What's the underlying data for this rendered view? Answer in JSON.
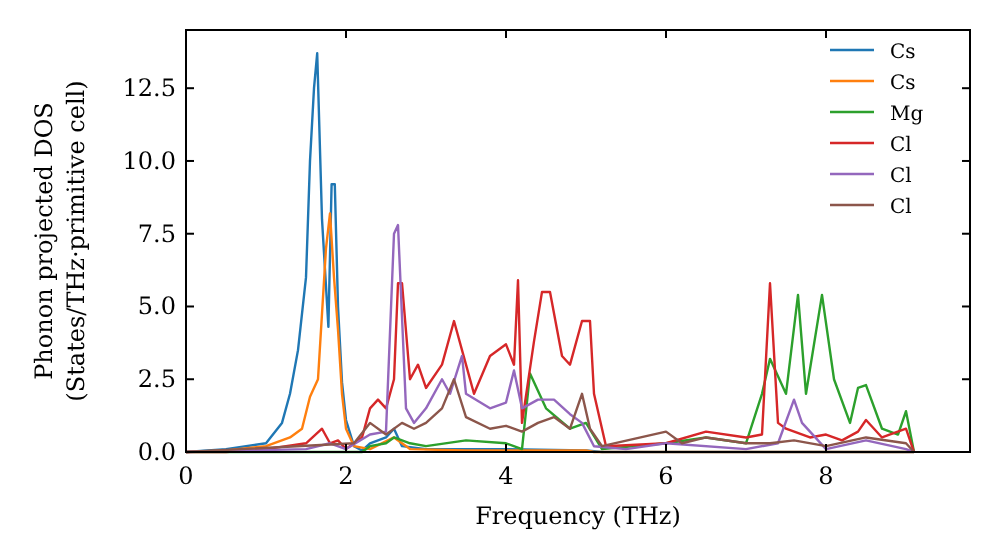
{
  "chart_data": {
    "type": "line",
    "xlabel": "Frequency (THz)",
    "ylabel": "Phonon projected DOS\n(States/THz·primitive cell)",
    "xlim": [
      0,
      9.8
    ],
    "ylim": [
      0,
      14.5
    ],
    "xticks": [
      0,
      2,
      4,
      6,
      8
    ],
    "yticks": [
      {
        "value": 0,
        "label": "0.0"
      },
      {
        "value": 2.5,
        "label": "2.5"
      },
      {
        "value": 5,
        "label": "5.0"
      },
      {
        "value": 7.5,
        "label": "7.5"
      },
      {
        "value": 10,
        "label": "10.0"
      },
      {
        "value": 12.5,
        "label": "12.5"
      }
    ],
    "grid": false,
    "legend": "top right",
    "series": [
      {
        "name": "Cs",
        "color": "#1f77b4",
        "x": [
          0,
          0.5,
          1.0,
          1.2,
          1.3,
          1.4,
          1.5,
          1.55,
          1.6,
          1.64,
          1.7,
          1.78,
          1.82,
          1.86,
          1.9,
          1.95,
          2.0,
          2.1,
          2.2,
          2.3,
          2.5,
          2.6,
          2.7,
          3.0,
          4.0,
          5.0,
          5.2,
          9.1
        ],
        "values": [
          0,
          0.1,
          0.3,
          1.0,
          2.0,
          3.5,
          6,
          10,
          12.5,
          13.7,
          8,
          4.3,
          9.2,
          9.2,
          5,
          2.4,
          1.1,
          0.2,
          0.05,
          0.3,
          0.5,
          0.8,
          0.2,
          0.1,
          0.1,
          0.05,
          0,
          0
        ]
      },
      {
        "name": "Cs",
        "color": "#ff7f0e",
        "x": [
          0,
          0.5,
          1.0,
          1.3,
          1.45,
          1.55,
          1.65,
          1.75,
          1.8,
          1.85,
          1.9,
          1.95,
          2.0,
          2.1,
          2.3,
          2.6,
          2.8,
          3.5,
          5.0,
          5.1,
          9.1
        ],
        "values": [
          0,
          0.05,
          0.2,
          0.5,
          0.8,
          1.9,
          2.5,
          7,
          8.2,
          6,
          4.2,
          2.0,
          0.8,
          0.2,
          0.1,
          0.5,
          0.1,
          0.05,
          0.05,
          0,
          0
        ]
      },
      {
        "name": "Mg",
        "color": "#2ca02c",
        "x": [
          0,
          2.2,
          2.3,
          2.5,
          2.6,
          2.8,
          3.0,
          3.5,
          4.0,
          4.2,
          4.3,
          4.5,
          4.8,
          5.0,
          5.2,
          6.0,
          6.5,
          7.0,
          7.2,
          7.3,
          7.5,
          7.65,
          7.75,
          7.95,
          8.1,
          8.3,
          8.4,
          8.5,
          8.7,
          8.9,
          9.0,
          9.1
        ],
        "values": [
          0,
          0,
          0.2,
          0.3,
          0.5,
          0.3,
          0.2,
          0.4,
          0.3,
          0.1,
          2.7,
          1.5,
          0.8,
          1.0,
          0.1,
          0.3,
          0.5,
          0.3,
          2.0,
          3.2,
          2.0,
          5.4,
          2.0,
          5.4,
          2.5,
          1.0,
          2.2,
          2.3,
          0.8,
          0.6,
          1.4,
          0
        ]
      },
      {
        "name": "Cl",
        "color": "#d62728",
        "x": [
          0,
          0.5,
          1.0,
          1.5,
          1.7,
          1.8,
          1.9,
          2.0,
          2.2,
          2.3,
          2.4,
          2.5,
          2.6,
          2.65,
          2.7,
          2.8,
          2.9,
          3.0,
          3.2,
          3.35,
          3.5,
          3.6,
          3.8,
          4.0,
          4.1,
          4.15,
          4.2,
          4.35,
          4.45,
          4.55,
          4.7,
          4.8,
          4.95,
          5.05,
          5.1,
          5.25,
          6.0,
          6.5,
          7.0,
          7.2,
          7.3,
          7.4,
          7.5,
          7.8,
          8.0,
          8.2,
          8.4,
          8.5,
          8.7,
          9.0,
          9.1
        ],
        "values": [
          0,
          0,
          0.1,
          0.3,
          0.8,
          0.3,
          0.4,
          0.1,
          0.5,
          1.5,
          1.8,
          1.5,
          2.5,
          5.8,
          5.8,
          2.5,
          3.0,
          2.2,
          3.0,
          4.5,
          3.0,
          2.0,
          3.3,
          3.7,
          3.0,
          5.9,
          1.0,
          3.8,
          5.5,
          5.5,
          3.3,
          3.0,
          4.5,
          4.5,
          2.0,
          0.2,
          0.3,
          0.7,
          0.5,
          0.6,
          5.8,
          1.0,
          0.8,
          0.5,
          0.6,
          0.4,
          0.7,
          1.1,
          0.5,
          0.8,
          0
        ]
      },
      {
        "name": "Cl",
        "color": "#9467bd",
        "x": [
          0,
          1.5,
          1.8,
          2.0,
          2.3,
          2.5,
          2.6,
          2.65,
          2.75,
          2.85,
          3.0,
          3.2,
          3.3,
          3.45,
          3.5,
          3.8,
          4.0,
          4.1,
          4.2,
          4.4,
          4.6,
          4.8,
          4.95,
          5.1,
          5.5,
          6.0,
          7.0,
          7.4,
          7.6,
          7.7,
          8.0,
          8.5,
          9.0,
          9.1
        ],
        "values": [
          0,
          0.1,
          0.3,
          0.1,
          0.6,
          0.7,
          7.5,
          7.8,
          1.5,
          1.0,
          1.5,
          2.5,
          2.0,
          3.3,
          2.0,
          1.5,
          1.7,
          2.8,
          1.5,
          1.8,
          1.8,
          1.3,
          1.0,
          0.2,
          0.1,
          0.3,
          0.1,
          0.3,
          1.8,
          1.0,
          0.1,
          0.4,
          0.1,
          0
        ]
      },
      {
        "name": "Cl",
        "color": "#8c564b",
        "x": [
          0,
          2.1,
          2.3,
          2.5,
          2.7,
          2.85,
          3.0,
          3.2,
          3.35,
          3.5,
          3.8,
          4.0,
          4.2,
          4.4,
          4.6,
          4.8,
          4.95,
          5.05,
          5.2,
          6.0,
          6.2,
          6.5,
          7.0,
          7.3,
          7.6,
          8.0,
          8.5,
          9.0,
          9.1
        ],
        "values": [
          0,
          0.3,
          1.0,
          0.6,
          1.0,
          0.8,
          1.0,
          1.5,
          2.5,
          1.2,
          0.8,
          0.9,
          0.7,
          1.0,
          1.2,
          0.8,
          2.0,
          0.8,
          0.2,
          0.7,
          0.3,
          0.5,
          0.3,
          0.3,
          0.4,
          0.2,
          0.5,
          0.3,
          0
        ]
      }
    ]
  }
}
